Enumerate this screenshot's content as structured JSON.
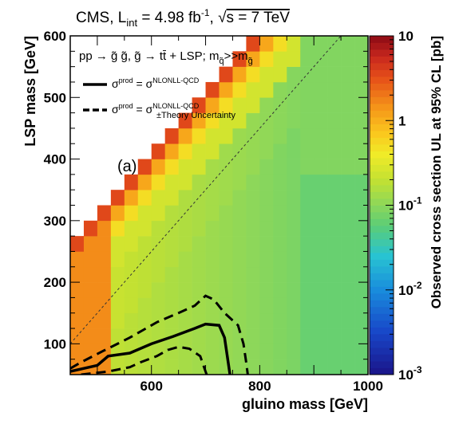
{
  "chart_data": {
    "type": "heatmap",
    "title": "CMS, L_int = 4.98 fb^-1, √s = 7 TeV",
    "title_parts": {
      "experiment": "CMS, L",
      "lumi_sub": "int",
      "lumi_value": " = 4.98 fb",
      "lumi_exp": "-1",
      "energy_sep": ", ",
      "sqrt": "√",
      "energy": "s = 7 TeV"
    },
    "process": {
      "prefix": "pp → g̃ g̃, g̃ → tt̄ + LSP; m",
      "sub1": "q̃",
      "mid": ">>m",
      "sub2": "g̃"
    },
    "xlabel": "gluino mass [GeV]",
    "ylabel": "LSP mass [GeV]",
    "zlabel": "Observed cross section UL at 95% CL [pb]",
    "panel_label": "(a)",
    "xlim": [
      450,
      1000
    ],
    "ylim": [
      50,
      600
    ],
    "x_ticks": [
      600,
      800,
      1000
    ],
    "y_ticks": [
      100,
      200,
      300,
      400,
      500,
      600
    ],
    "z_scale": "log",
    "z_range": [
      0.001,
      10
    ],
    "z_ticks": [
      {
        "value": 10,
        "base": "10",
        "exp": ""
      },
      {
        "value": 1,
        "base": "1",
        "exp": ""
      },
      {
        "value": 0.1,
        "base": "10",
        "exp": "-1"
      },
      {
        "value": 0.01,
        "base": "10",
        "exp": "-2"
      },
      {
        "value": 0.001,
        "base": "10",
        "exp": "-3"
      }
    ],
    "bin_width": 25,
    "grid": false,
    "legend_position": "top-left",
    "legend": [
      {
        "style": "solid",
        "sup": "prod",
        "rhs": "NLONLL-QCD",
        "sub": ""
      },
      {
        "style": "dashed",
        "sup": "prod",
        "rhs": "NLONLL-QCD",
        "sub": "±Theory Uncertainty"
      }
    ],
    "legend_sigma": "σ",
    "diagonal_line": "dotted",
    "cells": {
      "description_columns": [
        "gluino_mass",
        "lsp_min",
        "lsp_max",
        "log10_ul_at_boundary",
        "log10_ul_interior"
      ],
      "x": [
        462.5,
        487.5,
        512.5,
        537.5,
        562.5,
        587.5,
        612.5,
        637.5,
        662.5,
        687.5,
        712.5,
        737.5,
        762.5,
        787.5,
        812.5,
        837.5,
        862.5,
        887.5,
        912.5,
        937.5,
        962.5,
        987.5
      ]
    },
    "observed_contour": [
      [
        450,
        55
      ],
      [
        500,
        65
      ],
      [
        520,
        80
      ],
      [
        560,
        85
      ],
      [
        600,
        100
      ],
      [
        640,
        112
      ],
      [
        680,
        125
      ],
      [
        700,
        132
      ],
      [
        725,
        130
      ],
      [
        735,
        110
      ],
      [
        740,
        80
      ],
      [
        745,
        50
      ]
    ],
    "theory_minus_contour": [
      [
        470,
        50
      ],
      [
        520,
        55
      ],
      [
        560,
        62
      ],
      [
        580,
        70
      ],
      [
        610,
        80
      ],
      [
        630,
        90
      ],
      [
        650,
        95
      ],
      [
        670,
        92
      ],
      [
        690,
        80
      ],
      [
        700,
        55
      ],
      [
        702,
        50
      ]
    ],
    "theory_plus_contour": [
      [
        450,
        60
      ],
      [
        470,
        70
      ],
      [
        510,
        88
      ],
      [
        560,
        110
      ],
      [
        610,
        135
      ],
      [
        650,
        150
      ],
      [
        680,
        162
      ],
      [
        700,
        178
      ],
      [
        715,
        172
      ],
      [
        735,
        150
      ],
      [
        760,
        130
      ],
      [
        770,
        100
      ],
      [
        775,
        70
      ],
      [
        778,
        50
      ]
    ]
  }
}
